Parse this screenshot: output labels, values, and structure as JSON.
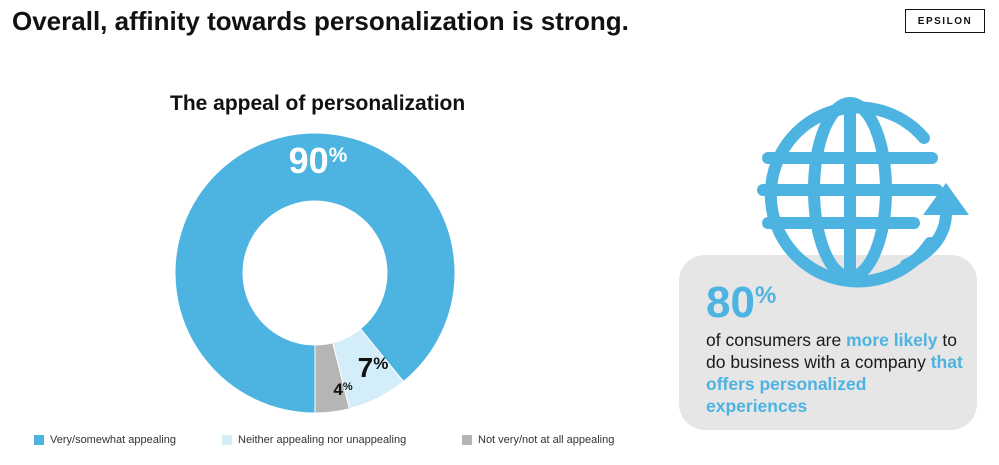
{
  "header": {
    "title": "Overall, affinity towards personalization is strong.",
    "brand": "EPSILON"
  },
  "chart_data": {
    "type": "pie",
    "title": "The appeal of personalization",
    "labels": [
      "Very/somewhat appealing",
      "Neither appealing nor unappealing",
      "Not very/not at all appealing"
    ],
    "values": [
      90,
      7,
      4
    ],
    "value_labels": [
      "90%",
      "7%",
      "4%"
    ],
    "colors": [
      "#4db3e0",
      "#d4eef9",
      "#b5b5b5"
    ],
    "donut": true,
    "legend_position": "bottom"
  },
  "callout": {
    "value": "80",
    "unit": "%",
    "text_parts": [
      "of consumers are ",
      "more likely",
      " to do business with a company ",
      "that offers personalized experiences"
    ],
    "accent_color": "#4db3e0",
    "icon": "globe-arrow-icon"
  }
}
